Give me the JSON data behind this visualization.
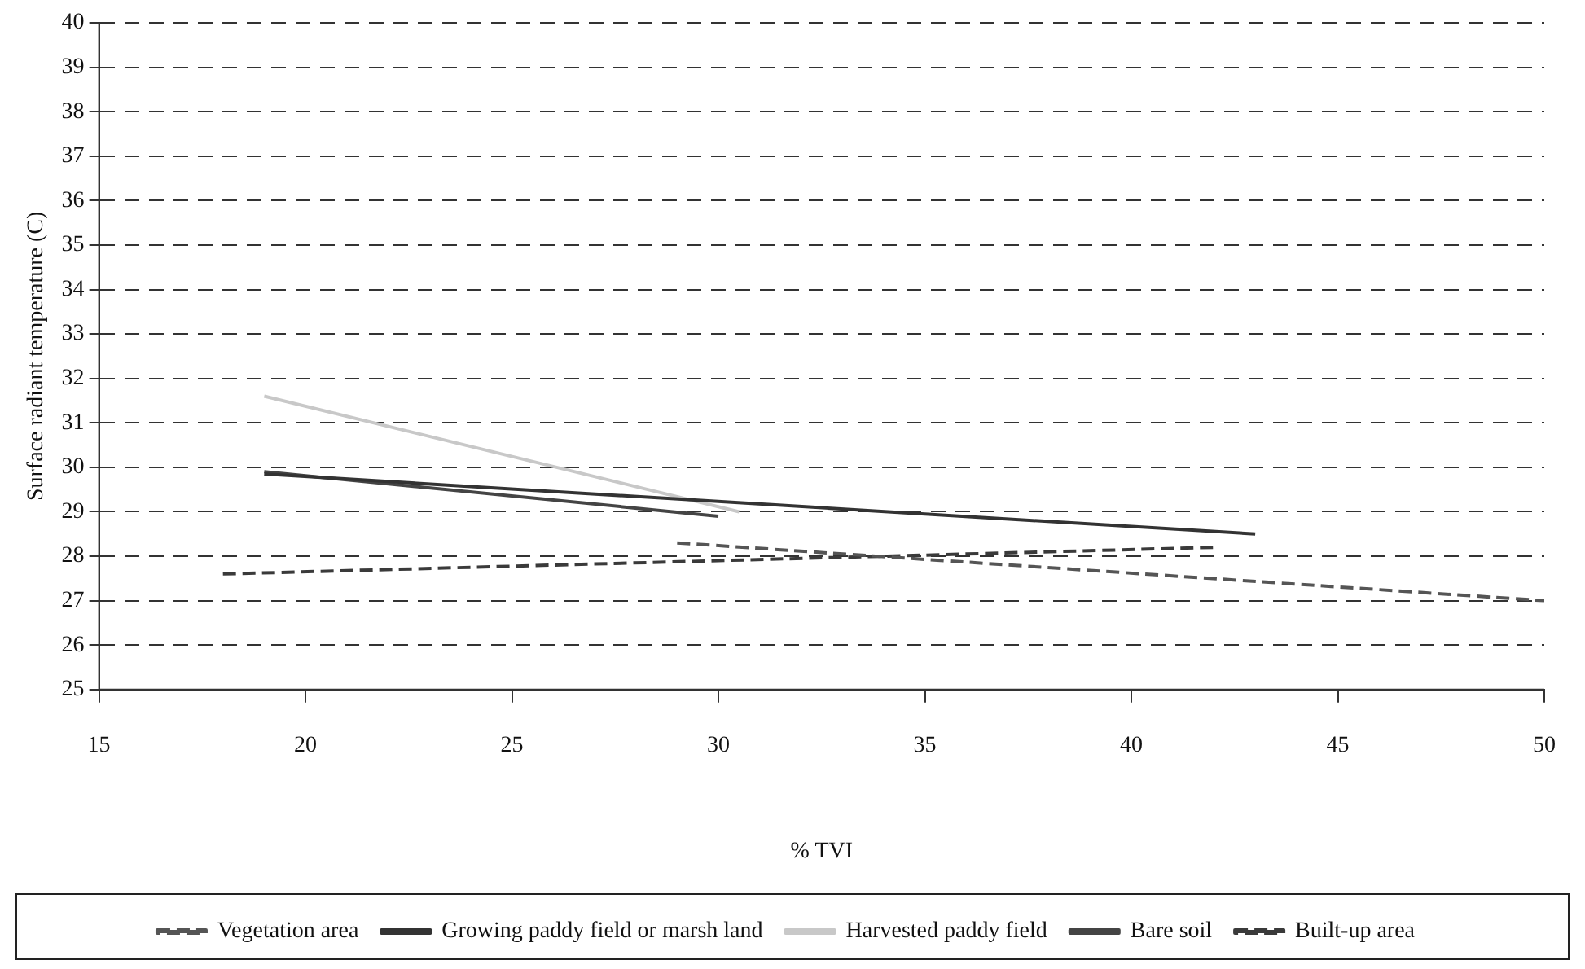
{
  "chart_data": {
    "type": "line",
    "xlabel": "% TVI",
    "ylabel": "Surface radiant temperature (C)",
    "xlim": [
      15,
      50
    ],
    "xticks": [
      15,
      20,
      25,
      30,
      35,
      40,
      45,
      50
    ],
    "ylim": [
      25,
      40
    ],
    "yticks": [
      25,
      26,
      27,
      28,
      29,
      30,
      31,
      32,
      33,
      34,
      35,
      36,
      37,
      38,
      39,
      40
    ],
    "grid": "y",
    "legend": "bottom",
    "marker": "none",
    "series": [
      {
        "name": "Vegetation area",
        "color": "#555555",
        "line_style": "dashed",
        "x": [
          29,
          50
        ],
        "values": [
          28.3,
          27.0
        ]
      },
      {
        "name": "Growing paddy field or marsh land",
        "color": "#333333",
        "line_style": "solid",
        "x": [
          19,
          43
        ],
        "values": [
          29.85,
          28.5
        ]
      },
      {
        "name": "Harvested paddy field",
        "color": "#c8c8c8",
        "line_style": "solid",
        "x": [
          19,
          30.5
        ],
        "values": [
          31.6,
          29.0
        ]
      },
      {
        "name": "Bare soil",
        "color": "#444444",
        "line_style": "solid",
        "x": [
          19,
          30
        ],
        "values": [
          29.9,
          28.9
        ]
      },
      {
        "name": "Built-up area",
        "color": "#3a3a3a",
        "line_style": "dashed",
        "x": [
          18,
          42
        ],
        "values": [
          27.6,
          28.2
        ]
      }
    ]
  }
}
